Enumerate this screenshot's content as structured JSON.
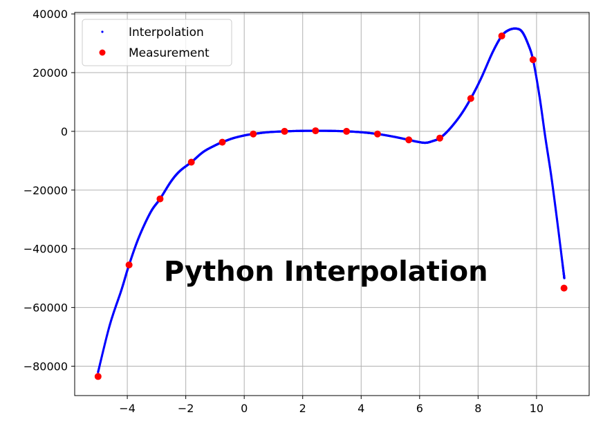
{
  "chart_data": {
    "type": "scatter",
    "title": "",
    "xlabel": "",
    "ylabel": "",
    "xlim": [
      -5.8,
      11.8
    ],
    "ylim": [
      -90000,
      40500
    ],
    "xticks": [
      -4,
      -2,
      0,
      2,
      4,
      6,
      8,
      10
    ],
    "xtick_labels": [
      "−4",
      "−2",
      "0",
      "2",
      "4",
      "6",
      "8",
      "10"
    ],
    "yticks": [
      40000,
      20000,
      0,
      -20000,
      -40000,
      -60000,
      -80000
    ],
    "ytick_labels": [
      "40000",
      "20000",
      "0",
      "−20000",
      "−40000",
      "−60000",
      "−80000"
    ],
    "grid": true,
    "legend": {
      "placement": "top-left",
      "entries": [
        "Interpolation",
        "Measurement"
      ]
    },
    "annotation": "Python Interpolation",
    "colors": {
      "interpolation": "#0000ff",
      "measurement": "#ff0000",
      "grid": "#b0b0b0",
      "axes": "#000000"
    },
    "series": [
      {
        "name": "Measurement",
        "x": [
          -5.0,
          -3.94,
          -2.88,
          -1.81,
          -0.75,
          0.31,
          1.38,
          2.44,
          3.5,
          4.56,
          5.63,
          6.69,
          7.75,
          8.81,
          9.88,
          10.94
        ],
        "y": [
          -83500,
          -45500,
          -23000,
          -10500,
          -3700,
          -900,
          0,
          200,
          0,
          -900,
          -2900,
          -2300,
          11200,
          32500,
          24400,
          -53400
        ]
      },
      {
        "name": "Interpolation",
        "x": [
          -5.0,
          -4.6,
          -4.2,
          -3.94,
          -3.6,
          -3.2,
          -2.88,
          -2.5,
          -2.2,
          -1.81,
          -1.4,
          -1.0,
          -0.75,
          -0.4,
          0.0,
          0.31,
          0.8,
          1.38,
          1.9,
          2.44,
          3.0,
          3.5,
          4.0,
          4.56,
          5.1,
          5.63,
          5.9,
          6.2,
          6.45,
          6.69,
          7.0,
          7.4,
          7.75,
          8.1,
          8.5,
          8.81,
          9.05,
          9.3,
          9.5,
          9.7,
          9.88,
          10.1,
          10.3,
          10.5,
          10.7,
          10.9,
          10.95
        ],
        "y": [
          -82000,
          -66000,
          -54000,
          -45500,
          -36000,
          -27500,
          -23000,
          -17000,
          -13500,
          -10500,
          -7000,
          -4800,
          -3700,
          -2400,
          -1400,
          -900,
          -300,
          0,
          150,
          200,
          150,
          0,
          -300,
          -900,
          -1800,
          -2900,
          -3500,
          -3900,
          -3300,
          -2300,
          500,
          5500,
          11200,
          18000,
          27000,
          32500,
          34500,
          35000,
          34000,
          30000,
          24400,
          12000,
          -2000,
          -15000,
          -30000,
          -46000,
          -50000
        ]
      }
    ]
  }
}
